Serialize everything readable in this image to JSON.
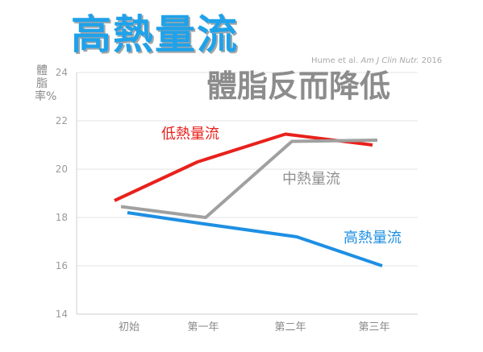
{
  "title": "高熱量流",
  "subtitle": "體脂反而降低",
  "citation": {
    "authors": "Hume et al.",
    "journal": "Am J Clin Nutr.",
    "year": "2016"
  },
  "chart_data": {
    "type": "line",
    "ylabel": "體脂率%",
    "xlabel": "",
    "categories": [
      "初始",
      "第一年",
      "第二年",
      "第三年"
    ],
    "ylim": [
      14,
      24
    ],
    "yticks": [
      14,
      16,
      18,
      20,
      22,
      24
    ],
    "grid": true,
    "series": [
      {
        "name": "低熱量流",
        "color": "#e8211c",
        "values": [
          18.7,
          20.3,
          21.45,
          21.0
        ]
      },
      {
        "name": "中熱量流",
        "color": "#a0a0a0",
        "values": [
          18.45,
          18.0,
          21.15,
          21.2
        ]
      },
      {
        "name": "高熱量流",
        "color": "#1e8fe3",
        "values": [
          18.2,
          17.75,
          17.2,
          16.0
        ]
      }
    ]
  }
}
